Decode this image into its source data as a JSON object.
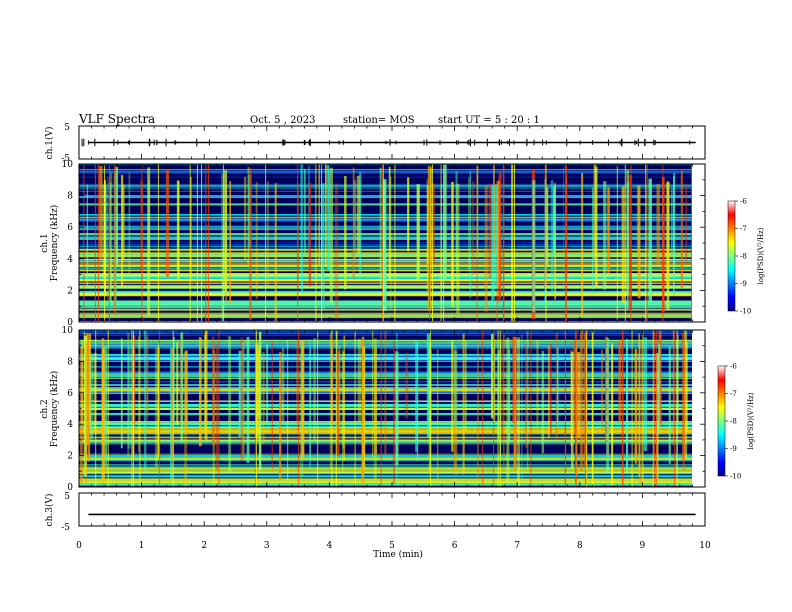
{
  "header": {
    "title": "VLF Spectra",
    "date": "Oct. 5 , 2023",
    "station": "station= MOS",
    "start_ut": "start UT =  5 : 20 : 1"
  },
  "chart_data": [
    {
      "type": "line",
      "panel": "ch1-waveform",
      "ylabel": "ch.1(V)",
      "xlim": [
        0,
        10
      ],
      "ylim": [
        -5,
        5
      ],
      "yticks": [
        "5",
        "-5"
      ],
      "series": [
        {
          "x": [
            0.15,
            9.85
          ],
          "y": [
            0,
            0
          ]
        }
      ]
    },
    {
      "type": "heatmap",
      "panel": "ch1-spectrogram",
      "ylabel": "ch.1\nFrequency (kHz)",
      "xlim": [
        0,
        10
      ],
      "ylim": [
        0,
        10
      ],
      "yticks": [
        "0",
        "2",
        "4",
        "6",
        "8",
        "10"
      ],
      "colorbar": {
        "label": "log(PSD)(V²/Hz)",
        "range": [
          -10,
          -6
        ],
        "ticks": [
          "-6",
          "-7",
          "-8",
          "-9",
          "-10"
        ]
      }
    },
    {
      "type": "heatmap",
      "panel": "ch2-spectrogram",
      "ylabel": "ch.2\nFrequency (kHz)",
      "xlim": [
        0,
        10
      ],
      "ylim": [
        0,
        10
      ],
      "yticks": [
        "0",
        "2",
        "4",
        "6",
        "8",
        "10"
      ],
      "colorbar": {
        "label": "log(PSD)(V²/Hz)",
        "range": [
          -10,
          -6
        ],
        "ticks": [
          "-6",
          "-7",
          "-8",
          "-9",
          "-10"
        ]
      }
    },
    {
      "type": "line",
      "panel": "ch3-waveform",
      "ylabel": "ch.3(V)",
      "xlim": [
        0,
        10
      ],
      "ylim": [
        -5,
        5
      ],
      "yticks": [
        "5",
        "-5"
      ],
      "series": [
        {
          "x": [
            0.15,
            9.85
          ],
          "y": [
            -1.5,
            -1.5
          ]
        }
      ]
    }
  ],
  "xaxis": {
    "label": "Time  (min)",
    "ticks": [
      "0",
      "1",
      "2",
      "3",
      "4",
      "5",
      "6",
      "7",
      "8",
      "9",
      "10"
    ]
  }
}
